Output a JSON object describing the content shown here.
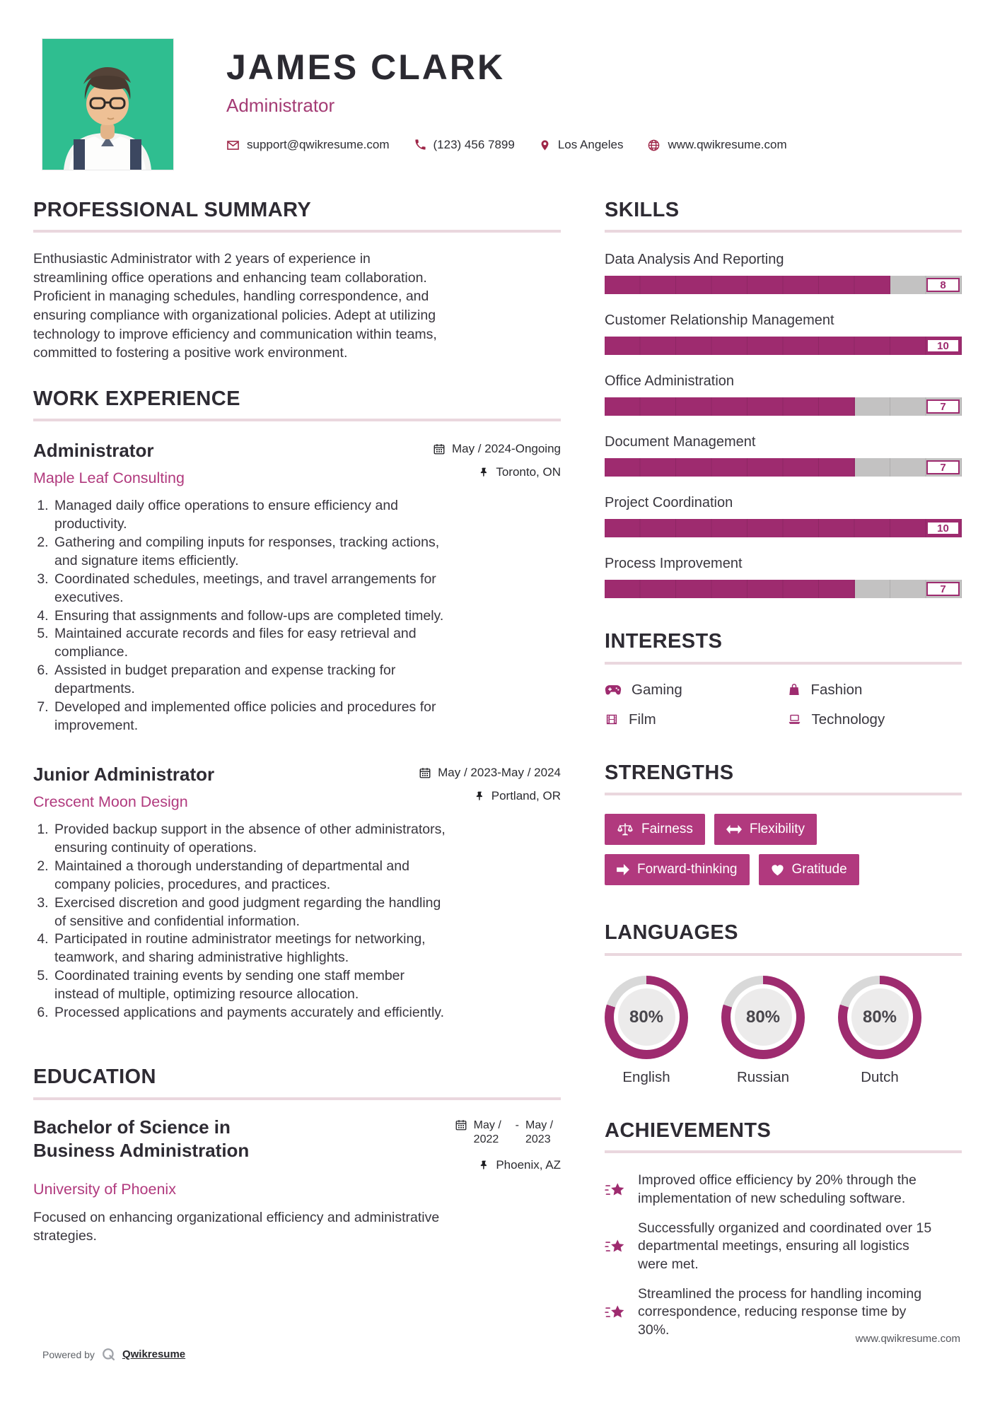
{
  "header": {
    "name": "JAMES CLARK",
    "title": "Administrator",
    "contacts": [
      {
        "label": "support@qwikresume.com",
        "icon": "email-icon",
        "link": true
      },
      {
        "label": "(123) 456 7899",
        "icon": "phone-icon",
        "link": true
      },
      {
        "label": "Los Angeles",
        "icon": "location-pin-icon",
        "link": false
      },
      {
        "label": "www.qwikresume.com",
        "icon": "globe-icon",
        "link": true
      }
    ]
  },
  "left": {
    "summary": {
      "heading": "PROFESSIONAL SUMMARY",
      "text": "Enthusiastic Administrator with 2 years of experience in streamlining office operations and enhancing team collaboration. Proficient in managing schedules, handling correspondence, and ensuring compliance with organizational policies. Adept at utilizing technology to improve efficiency and communication within teams, committed to fostering a positive work environment."
    },
    "experience": {
      "heading": "WORK EXPERIENCE",
      "jobs": [
        {
          "title": "Administrator",
          "company": "Maple Leaf Consulting",
          "date": "May / 2024-Ongoing",
          "date_icon": "calendar-icon",
          "location": "Toronto, ON",
          "location_icon": "pushpin-icon",
          "bullets": [
            "Managed daily office operations to ensure efficiency and productivity.",
            "Gathering and compiling inputs for responses, tracking actions, and signature items efficiently.",
            "Coordinated schedules, meetings, and travel arrangements for executives.",
            "Ensuring that assignments and follow-ups are completed timely.",
            "Maintained accurate records and files for easy retrieval and compliance.",
            "Assisted in budget preparation and expense tracking for departments.",
            "Developed and implemented office policies and procedures for improvement."
          ]
        },
        {
          "title": "Junior Administrator",
          "company": "Crescent Moon Design",
          "date": "May / 2023-May / 2024",
          "date_icon": "calendar-icon",
          "location": "Portland, OR",
          "location_icon": "pushpin-icon",
          "bullets": [
            "Provided backup support in the absence of other administrators, ensuring continuity of operations.",
            "Maintained a thorough understanding of departmental and company policies, procedures, and practices.",
            "Exercised discretion and good judgment regarding the handling of sensitive and confidential information.",
            "Participated in routine administrator meetings for networking, teamwork, and sharing administrative highlights.",
            "Coordinated training events by sending one staff member instead of multiple, optimizing resource allocation.",
            "Processed applications and payments accurately and efficiently."
          ]
        }
      ]
    },
    "education": {
      "heading": "EDUCATION",
      "degree": "Bachelor of Science in Business Administration",
      "school": "University of Phoenix",
      "date_start": "May / 2022",
      "date_separator": "-",
      "date_end": "May / 2023",
      "date_icon": "calendar-icon",
      "location": "Phoenix, AZ",
      "location_icon": "pushpin-icon",
      "description": "Focused on enhancing organizational efficiency and administrative strategies."
    }
  },
  "right": {
    "skills": {
      "heading": "SKILLS",
      "max": 10,
      "items": [
        {
          "label": "Data Analysis And Reporting",
          "value": 8
        },
        {
          "label": "Customer Relationship Management",
          "value": 10
        },
        {
          "label": "Office Administration",
          "value": 7
        },
        {
          "label": "Document Management",
          "value": 7
        },
        {
          "label": "Project Coordination",
          "value": 10
        },
        {
          "label": "Process Improvement",
          "value": 7
        }
      ]
    },
    "interests": {
      "heading": "INTERESTS",
      "items": [
        {
          "label": "Gaming",
          "icon": "gamepad-icon"
        },
        {
          "label": "Fashion",
          "icon": "shopping-bag-icon"
        },
        {
          "label": "Film",
          "icon": "film-icon"
        },
        {
          "label": "Technology",
          "icon": "laptop-icon"
        }
      ]
    },
    "strengths": {
      "heading": "STRENGTHS",
      "items": [
        {
          "label": "Fairness",
          "icon": "scales-icon"
        },
        {
          "label": "Flexibility",
          "icon": "arrows-left-right-icon"
        },
        {
          "label": "Forward-thinking",
          "icon": "arrow-right-icon"
        },
        {
          "label": "Gratitude",
          "icon": "heart-icon"
        }
      ]
    },
    "languages": {
      "heading": "LANGUAGES",
      "items": [
        {
          "label": "English",
          "percent": 80
        },
        {
          "label": "Russian",
          "percent": 80
        },
        {
          "label": "Dutch",
          "percent": 80
        }
      ]
    },
    "achievements": {
      "heading": "ACHIEVEMENTS",
      "icon": "shooting-star-icon",
      "items": [
        "Improved office efficiency by 20% through the implementation of new scheduling software.",
        "Successfully organized and coordinated over 15 departmental meetings, ensuring all logistics were met.",
        "Streamlined the process for handling incoming correspondence, reducing response time by 30%."
      ]
    }
  },
  "footer": {
    "powered_by": "Powered by",
    "brand": "Qwikresume",
    "brand_icon": "qwikresume-logo",
    "site": "www.qwikresume.com"
  },
  "colors": {
    "accent": "#9E2B6F",
    "badge": "#B1397E",
    "bar_gray": "#C3C2C2",
    "section_rule": "#EAD7DE",
    "photo_background": "#2FBE90",
    "heading_ink": "#2E2B33",
    "company_pink": "#B13A7E"
  }
}
